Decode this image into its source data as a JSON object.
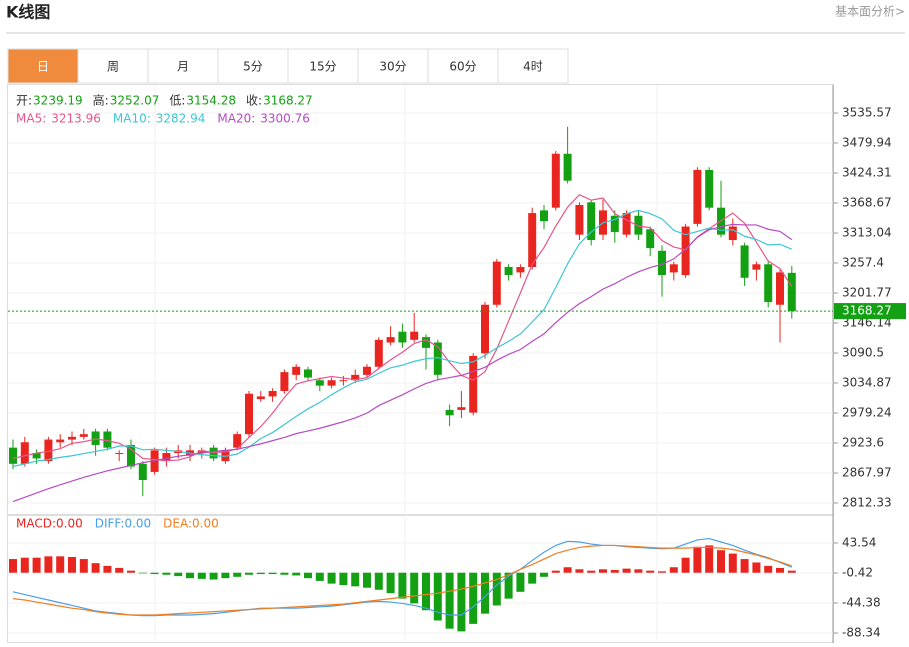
{
  "header": {
    "title": "K线图",
    "link": "基本面分析>"
  },
  "tabs": [
    "日",
    "周",
    "月",
    "5分",
    "15分",
    "30分",
    "60分",
    "4时"
  ],
  "active_tab": 0,
  "chart_data": [
    {
      "type": "candlestick",
      "info": [
        {
          "label": "开:",
          "field": "open"
        },
        {
          "label": "高:",
          "field": "high"
        },
        {
          "label": "低:",
          "field": "low"
        },
        {
          "label": "收:",
          "field": "close"
        }
      ],
      "open": [
        2915,
        2885,
        2905,
        2890,
        2925,
        2930,
        2935,
        2945,
        2945,
        2905,
        2920,
        2885,
        2870,
        2890,
        2905,
        2900,
        2905,
        2915,
        2890,
        2915,
        2940,
        3005,
        3010,
        3020,
        3050,
        3060,
        3040,
        3030,
        3040,
        3040,
        3050,
        3065,
        3110,
        3130,
        3115,
        3120,
        3110,
        2985,
        2985,
        2980,
        3090,
        3180,
        3250,
        3240,
        3250,
        3355,
        3360,
        3460,
        3310,
        3370,
        3310,
        3345,
        3310,
        3345,
        3320,
        3280,
        3240,
        3235,
        3330,
        3430,
        3360,
        3300,
        3290,
        3245,
        3255,
        3180,
        3239.19
      ],
      "high": [
        2930,
        2935,
        2912,
        2935,
        2940,
        2945,
        2950,
        2950,
        2950,
        2910,
        2930,
        2890,
        2915,
        2915,
        2920,
        2920,
        2915,
        2920,
        2915,
        2945,
        3020,
        3020,
        3025,
        3060,
        3070,
        3065,
        3045,
        3045,
        3048,
        3060,
        3070,
        3120,
        3140,
        3145,
        3165,
        3125,
        3115,
        2995,
        3020,
        3090,
        3185,
        3265,
        3255,
        3255,
        3360,
        3365,
        3465,
        3510,
        3370,
        3375,
        3375,
        3355,
        3355,
        3355,
        3325,
        3290,
        3260,
        3330,
        3435,
        3435,
        3410,
        3340,
        3295,
        3260,
        3260,
        3245,
        3252.07
      ],
      "low": [
        2875,
        2880,
        2885,
        2885,
        2915,
        2920,
        2930,
        2900,
        2910,
        2890,
        2875,
        2825,
        2865,
        2880,
        2895,
        2890,
        2895,
        2890,
        2885,
        2910,
        2935,
        3000,
        3000,
        3015,
        3040,
        3040,
        3020,
        3025,
        3030,
        3035,
        3045,
        3060,
        3105,
        3100,
        3110,
        3060,
        3040,
        2955,
        2970,
        2975,
        3080,
        3175,
        3225,
        3230,
        3245,
        3320,
        3355,
        3405,
        3300,
        3290,
        3300,
        3295,
        3305,
        3300,
        3270,
        3195,
        3225,
        3230,
        3325,
        3355,
        3305,
        3290,
        3215,
        3225,
        3175,
        3110,
        3154.28
      ],
      "close": [
        2885,
        2925,
        2895,
        2930,
        2930,
        2935,
        2940,
        2920,
        2915,
        2905,
        2880,
        2855,
        2910,
        2905,
        2910,
        2910,
        2910,
        2895,
        2910,
        2940,
        3015,
        3010,
        3020,
        3055,
        3065,
        3045,
        3030,
        3040,
        3040,
        3050,
        3065,
        3115,
        3120,
        3110,
        3130,
        3100,
        3050,
        2975,
        2990,
        3085,
        3180,
        3260,
        3235,
        3250,
        3350,
        3335,
        3460,
        3410,
        3365,
        3300,
        3355,
        3315,
        3350,
        3310,
        3285,
        3235,
        3255,
        3325,
        3430,
        3360,
        3310,
        3325,
        3230,
        3255,
        3185,
        3240,
        3168.27
      ],
      "up_color": "#e8251f",
      "down_color": "#13a113",
      "last_color": "#13a113",
      "series": [
        {
          "name": "MA5:",
          "color": "#e8558c",
          "values": [
            2895,
            2900,
            2905,
            2908,
            2913,
            2923,
            2926,
            2931,
            2928,
            2923,
            2912,
            2895,
            2893,
            2891,
            2892,
            2898,
            2909,
            2906,
            2907,
            2913,
            2934,
            2954,
            2979,
            3008,
            3033,
            3039,
            3043,
            3047,
            3044,
            3041,
            3045,
            3062,
            3078,
            3092,
            3108,
            3115,
            3102,
            3073,
            3049,
            3040,
            3056,
            3098,
            3150,
            3202,
            3255,
            3286,
            3326,
            3361,
            3384,
            3374,
            3378,
            3349,
            3337,
            3326,
            3323,
            3299,
            3287,
            3282,
            3306,
            3321,
            3336,
            3350,
            3331,
            3296,
            3261,
            3247,
            3213.96
          ]
        },
        {
          "name": "MA10:",
          "color": "#3ec6d3",
          "values": [
            2880,
            2885,
            2890,
            2893,
            2897,
            2900,
            2904,
            2908,
            2912,
            2918,
            2918,
            2911,
            2912,
            2910,
            2908,
            2905,
            2902,
            2900,
            2899,
            2903,
            2916,
            2932,
            2943,
            2958,
            2973,
            2987,
            2999,
            3013,
            3026,
            3037,
            3042,
            3053,
            3063,
            3068,
            3075,
            3080,
            3082,
            3076,
            3071,
            3074,
            3086,
            3100,
            3112,
            3126,
            3148,
            3171,
            3212,
            3256,
            3293,
            3315,
            3332,
            3338,
            3349,
            3355,
            3349,
            3339,
            3318,
            3310,
            3316,
            3322,
            3318,
            3319,
            3307,
            3301,
            3291,
            3292,
            3282.94
          ]
        },
        {
          "name": "MA20:",
          "color": "#b64cc2",
          "values": [
            2815,
            2823,
            2831,
            2839,
            2846,
            2853,
            2860,
            2866,
            2872,
            2877,
            2882,
            2887,
            2891,
            2895,
            2899,
            2902,
            2905,
            2908,
            2910,
            2912,
            2917,
            2922,
            2928,
            2934,
            2941,
            2946,
            2951,
            2957,
            2963,
            2970,
            2979,
            2993,
            3003,
            3013,
            3024,
            3034,
            3041,
            3045,
            3049,
            3056,
            3064,
            3077,
            3088,
            3097,
            3112,
            3126,
            3147,
            3166,
            3182,
            3195,
            3209,
            3219,
            3231,
            3241,
            3249,
            3255,
            3265,
            3283,
            3305,
            3319,
            3325,
            3329,
            3328,
            3328,
            3320,
            3316,
            3300.76
          ]
        }
      ],
      "ylim": [
        2790.1,
        3587.5
      ],
      "yticks": [
        3535.57,
        3479.94,
        3424.31,
        3368.67,
        3313.04,
        3257.4,
        3201.77,
        3146.14,
        3090.5,
        3034.87,
        2979.24,
        2923.6,
        2867.97,
        2812.33
      ]
    },
    {
      "type": "macd",
      "histogram_name": "MACD:",
      "histogram_label": "0.00",
      "up_color": "#e8251f",
      "down_color": "#13a113",
      "histogram": [
        20,
        22,
        22,
        24,
        24,
        23,
        20,
        14,
        10,
        7,
        3,
        -1,
        -2,
        -3,
        -5,
        -8,
        -9,
        -10,
        -8,
        -6,
        -3,
        -2,
        -2,
        -3,
        -4,
        -8,
        -12,
        -16,
        -18,
        -20,
        -22,
        -25,
        -30,
        -38,
        -45,
        -55,
        -70,
        -82,
        -86,
        -75,
        -60,
        -48,
        -38,
        -28,
        -16,
        -6,
        3,
        8,
        5,
        3,
        5,
        4,
        6,
        5,
        3,
        2,
        8,
        22,
        38,
        40,
        33,
        28,
        20,
        15,
        10,
        7,
        3
      ],
      "series": [
        {
          "name": "DIFF:",
          "label": "0.00",
          "color": "#4a9fe6",
          "values": [
            -28,
            -32,
            -36,
            -40,
            -44,
            -48,
            -52,
            -56,
            -58,
            -60,
            -62,
            -63,
            -63,
            -62,
            -62,
            -62,
            -61,
            -60,
            -58,
            -56,
            -54,
            -52,
            -52,
            -52,
            -52,
            -51,
            -50,
            -49,
            -47,
            -45,
            -43,
            -42,
            -43,
            -45,
            -48,
            -52,
            -58,
            -62,
            -62,
            -50,
            -35,
            -18,
            -5,
            5,
            18,
            30,
            40,
            46,
            45,
            42,
            40,
            40,
            38,
            37,
            36,
            35,
            36,
            42,
            48,
            50,
            45,
            40,
            33,
            27,
            22,
            15,
            8
          ]
        },
        {
          "name": "DEA:",
          "label": "0.00",
          "color": "#f07e22",
          "values": [
            -38,
            -40,
            -43,
            -46,
            -49,
            -52,
            -54,
            -57,
            -59,
            -61,
            -62,
            -62,
            -62,
            -61,
            -60,
            -59,
            -58,
            -57,
            -56,
            -55,
            -54,
            -53,
            -52,
            -51,
            -50,
            -49,
            -48,
            -47,
            -46,
            -44,
            -42,
            -40,
            -38,
            -36,
            -34,
            -32,
            -30,
            -27,
            -24,
            -20,
            -15,
            -10,
            -3,
            5,
            12,
            20,
            28,
            33,
            37,
            39,
            40,
            40,
            39,
            38,
            37,
            36,
            36,
            36,
            37,
            37,
            36,
            34,
            30,
            26,
            21,
            16,
            10
          ]
        }
      ],
      "ylim": [
        -103,
        84.57
      ],
      "yticks": [
        43.54,
        -0.42,
        -44.38,
        -88.34
      ]
    }
  ]
}
